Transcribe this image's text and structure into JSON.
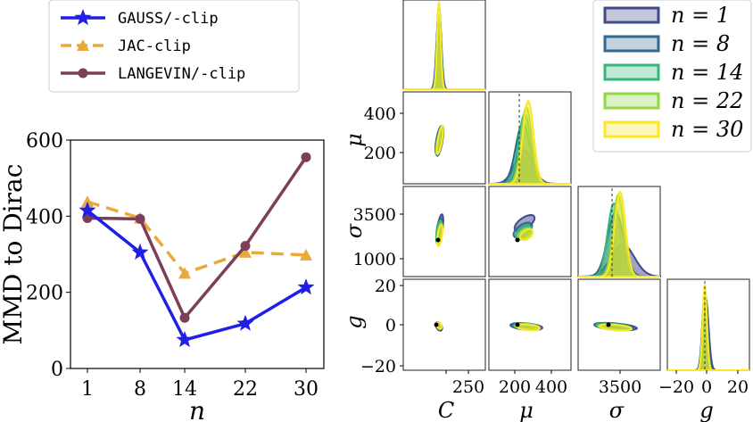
{
  "chart_data": [
    {
      "type": "line",
      "x": [
        "1",
        "8",
        "14",
        "22",
        "30"
      ],
      "ylabel": "MMD to Dirac",
      "xlabel": "n",
      "ylim": [
        0,
        600
      ],
      "yticks": [
        "0",
        "200",
        "400",
        "600"
      ],
      "legend_position": "top-left (above plot)",
      "series": [
        {
          "name": "GAUSS/-clip",
          "color": "#1f1fe8",
          "marker": "star",
          "dash": "solid",
          "values": [
            415,
            305,
            75,
            118,
            213
          ]
        },
        {
          "name": "JAC-clip",
          "color": "#eaa93c",
          "marker": "triangle",
          "dash": "dashed",
          "values": [
            438,
            395,
            250,
            305,
            298
          ]
        },
        {
          "name": "LANGEVIN/-clip",
          "color": "#7d3e57",
          "marker": "circle",
          "dash": "solid",
          "values": [
            395,
            393,
            133,
            322,
            555
          ]
        }
      ]
    },
    {
      "type": "corner",
      "parameters": [
        "C",
        "μ",
        "σ",
        "g"
      ],
      "reference_truth": {
        "C": 120,
        "μ": 210,
        "σ": 2000,
        "g": 0
      },
      "ticks": {
        "C_x": [
          "250"
        ],
        "mu_x": [
          "200",
          "400"
        ],
        "mu_y": [
          "200",
          "400"
        ],
        "sigma_x": [
          "3500"
        ],
        "sigma_y": [
          "1000",
          "3500"
        ],
        "g_x": [
          "−20",
          "0",
          "20"
        ],
        "g_y": [
          "−20",
          "0",
          "20"
        ]
      },
      "legend": [
        {
          "label": "n = 1",
          "color": "#3e4a89"
        },
        {
          "label": "n = 8",
          "color": "#31688e"
        },
        {
          "label": "n = 14",
          "color": "#35b779"
        },
        {
          "label": "n = 22",
          "color": "#90d743"
        },
        {
          "label": "n = 30",
          "color": "#fde725"
        }
      ],
      "marginals": {
        "μ": [
          {
            "n": 1,
            "mean": 260,
            "sd": 45
          },
          {
            "n": 8,
            "mean": 250,
            "sd": 32
          },
          {
            "n": 14,
            "mean": 255,
            "sd": 26
          },
          {
            "n": 22,
            "mean": 262,
            "sd": 22
          },
          {
            "n": 30,
            "mean": 268,
            "sd": 20
          }
        ],
        "σ": [
          {
            "n": 1,
            "mean": 2700,
            "sd": 620
          },
          {
            "n": 8,
            "mean": 2350,
            "sd": 420
          },
          {
            "n": 14,
            "mean": 2150,
            "sd": 320
          },
          {
            "n": 22,
            "mean": 2300,
            "sd": 300
          },
          {
            "n": 30,
            "mean": 2350,
            "sd": 280
          }
        ]
      }
    }
  ]
}
